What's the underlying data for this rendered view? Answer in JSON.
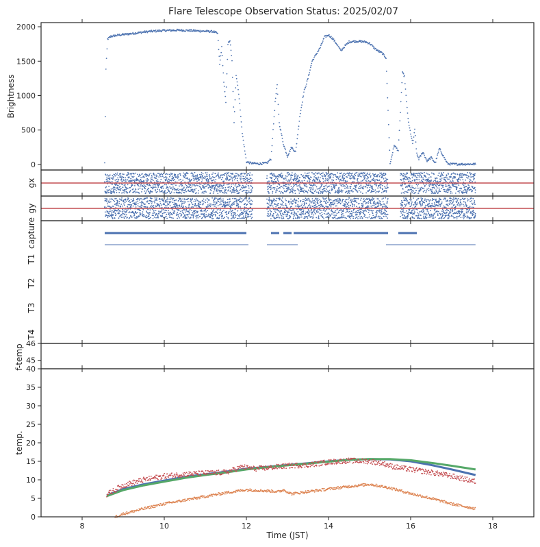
{
  "chart_data": {
    "type": "scatter",
    "title": "Flare Telescope Observation Status: 2025/02/07",
    "xlabel": "Time (JST)",
    "xlim": [
      7,
      19
    ],
    "xticks": [
      8,
      10,
      12,
      14,
      16,
      18
    ],
    "colors": {
      "blue": "#4c72b0",
      "orange": "#dd8452",
      "green": "#55a868",
      "red": "#c44e52",
      "axis": "#262626"
    },
    "panels": [
      {
        "id": "brightness",
        "ylabel": "Brightness",
        "ylim": [
          -80,
          2060
        ],
        "yticks": [
          0,
          500,
          1000,
          1500,
          2000
        ],
        "series": [
          {
            "color": "#4c72b0",
            "style": "scatter",
            "points": [
              [
                8.55,
                20
              ],
              [
                8.58,
                1380
              ],
              [
                8.62,
                1820
              ],
              [
                8.7,
                1860
              ],
              [
                8.9,
                1880
              ],
              [
                9.2,
                1900
              ],
              [
                9.6,
                1930
              ],
              [
                10.0,
                1945
              ],
              [
                10.4,
                1950
              ],
              [
                10.8,
                1940
              ],
              [
                11.0,
                1935
              ],
              [
                11.2,
                1930
              ],
              [
                11.3,
                1900
              ],
              [
                11.35,
                1450
              ],
              [
                11.4,
                1700
              ],
              [
                11.45,
                1200
              ],
              [
                11.5,
                900
              ],
              [
                11.55,
                1750
              ],
              [
                11.6,
                1800
              ],
              [
                11.65,
                1500
              ],
              [
                11.7,
                600
              ],
              [
                11.75,
                1300
              ],
              [
                11.8,
                1100
              ],
              [
                11.85,
                800
              ],
              [
                11.9,
                450
              ],
              [
                11.95,
                250
              ],
              [
                12.0,
                40
              ],
              [
                12.1,
                20
              ],
              [
                12.3,
                10
              ],
              [
                12.5,
                20
              ],
              [
                12.6,
                80
              ],
              [
                12.7,
                900
              ],
              [
                12.75,
                1150
              ],
              [
                12.8,
                600
              ],
              [
                12.9,
                300
              ],
              [
                13.0,
                120
              ],
              [
                13.1,
                250
              ],
              [
                13.2,
                180
              ],
              [
                13.3,
                700
              ],
              [
                13.4,
                1050
              ],
              [
                13.5,
                1250
              ],
              [
                13.6,
                1500
              ],
              [
                13.7,
                1600
              ],
              [
                13.8,
                1700
              ],
              [
                13.9,
                1850
              ],
              [
                14.0,
                1880
              ],
              [
                14.1,
                1830
              ],
              [
                14.2,
                1750
              ],
              [
                14.3,
                1650
              ],
              [
                14.4,
                1720
              ],
              [
                14.5,
                1780
              ],
              [
                14.7,
                1790
              ],
              [
                14.9,
                1780
              ],
              [
                15.0,
                1760
              ],
              [
                15.1,
                1700
              ],
              [
                15.2,
                1650
              ],
              [
                15.3,
                1620
              ],
              [
                15.4,
                1550
              ],
              [
                15.5,
                10
              ],
              [
                15.6,
                280
              ],
              [
                15.7,
                200
              ],
              [
                15.8,
                1330
              ],
              [
                15.85,
                1280
              ],
              [
                15.9,
                900
              ],
              [
                15.95,
                600
              ],
              [
                16.0,
                450
              ],
              [
                16.05,
                300
              ],
              [
                16.1,
                500
              ],
              [
                16.15,
                150
              ],
              [
                16.2,
                80
              ],
              [
                16.3,
                180
              ],
              [
                16.4,
                50
              ],
              [
                16.5,
                100
              ],
              [
                16.6,
                20
              ],
              [
                16.7,
                230
              ],
              [
                16.8,
                120
              ],
              [
                16.9,
                10
              ],
              [
                17.0,
                5
              ],
              [
                17.3,
                5
              ],
              [
                17.58,
                5
              ]
            ]
          }
        ]
      },
      {
        "id": "gx",
        "ylabel": "gx",
        "ylim": [
          -1,
          1
        ],
        "yticks": [],
        "refline": 0,
        "scatter_ranges": [
          [
            8.55,
            12.15
          ],
          [
            12.5,
            15.45
          ],
          [
            15.75,
            17.58
          ]
        ],
        "spread": 0.8
      },
      {
        "id": "gy",
        "ylabel": "gy",
        "ylim": [
          -1,
          1
        ],
        "yticks": [],
        "refline": 0,
        "scatter_ranges": [
          [
            8.55,
            12.15
          ],
          [
            12.5,
            15.45
          ],
          [
            15.75,
            17.58
          ]
        ],
        "spread": 0.85
      },
      {
        "id": "status",
        "ylabel": "",
        "categories": [
          "capture",
          "T1",
          "T2",
          "T3",
          "T4"
        ],
        "capture_segments": [
          [
            8.55,
            12.0
          ],
          [
            12.6,
            12.8
          ],
          [
            12.9,
            13.1
          ],
          [
            13.15,
            15.45
          ],
          [
            15.7,
            16.15
          ]
        ],
        "status_segments": [
          [
            8.55,
            12.05
          ],
          [
            12.5,
            13.25
          ],
          [
            15.4,
            17.58
          ]
        ]
      },
      {
        "id": "ftemp",
        "ylabel": "f-temp",
        "ylim": [
          44.5,
          46
        ],
        "yticks": [
          45,
          46
        ]
      },
      {
        "id": "temp",
        "ylabel": "temp.",
        "ylim": [
          0,
          40
        ],
        "yticks": [
          0,
          5,
          10,
          15,
          20,
          25,
          30,
          35,
          40
        ],
        "series": [
          {
            "color": "#4c72b0",
            "style": "line",
            "points": [
              [
                8.6,
                5.8
              ],
              [
                9,
                7.5
              ],
              [
                9.5,
                8.8
              ],
              [
                10,
                9.8
              ],
              [
                10.5,
                10.8
              ],
              [
                11,
                11.5
              ],
              [
                11.5,
                12.2
              ],
              [
                12,
                13.0
              ],
              [
                12.5,
                13.5
              ],
              [
                13,
                14.0
              ],
              [
                13.5,
                14.5
              ],
              [
                14,
                15.0
              ],
              [
                14.5,
                15.4
              ],
              [
                15,
                15.6
              ],
              [
                15.5,
                15.5
              ],
              [
                16,
                15.0
              ],
              [
                16.5,
                14.0
              ],
              [
                17,
                12.8
              ],
              [
                17.58,
                11.3
              ]
            ]
          },
          {
            "color": "#55a868",
            "style": "line",
            "points": [
              [
                8.6,
                5.6
              ],
              [
                9,
                7.2
              ],
              [
                9.5,
                8.5
              ],
              [
                10,
                9.5
              ],
              [
                10.5,
                10.5
              ],
              [
                11,
                11.3
              ],
              [
                11.5,
                12.0
              ],
              [
                12,
                12.8
              ],
              [
                12.5,
                13.4
              ],
              [
                13,
                13.9
              ],
              [
                13.5,
                14.4
              ],
              [
                14,
                14.9
              ],
              [
                14.5,
                15.4
              ],
              [
                15,
                15.6
              ],
              [
                15.5,
                15.6
              ],
              [
                16,
                15.3
              ],
              [
                16.5,
                14.6
              ],
              [
                17,
                13.8
              ],
              [
                17.58,
                12.8
              ]
            ]
          },
          {
            "color": "#c44e52",
            "style": "scatter",
            "jitter": 0.7,
            "points": [
              [
                8.6,
                6.0
              ],
              [
                9,
                8.5
              ],
              [
                9.5,
                10.0
              ],
              [
                10,
                11.0
              ],
              [
                10.5,
                11.5
              ],
              [
                11,
                11.8
              ],
              [
                11.5,
                12.0
              ],
              [
                11.9,
                13.5
              ],
              [
                12.2,
                13.0
              ],
              [
                12.5,
                13.2
              ],
              [
                13,
                13.8
              ],
              [
                13.5,
                14.0
              ],
              [
                14,
                14.8
              ],
              [
                14.5,
                15.2
              ],
              [
                15,
                15.0
              ],
              [
                15.3,
                14.5
              ],
              [
                15.6,
                13.5
              ],
              [
                16,
                12.8
              ],
              [
                16.5,
                12.0
              ],
              [
                17,
                11.0
              ],
              [
                17.58,
                9.5
              ]
            ]
          },
          {
            "color": "#dd8452",
            "style": "scatter",
            "jitter": 0.35,
            "points": [
              [
                8.8,
                0.0
              ],
              [
                9,
                0.8
              ],
              [
                9.5,
                2.2
              ],
              [
                10,
                3.5
              ],
              [
                10.5,
                4.5
              ],
              [
                11,
                5.5
              ],
              [
                11.5,
                6.5
              ],
              [
                12,
                7.3
              ],
              [
                12.5,
                7.0
              ],
              [
                12.8,
                6.8
              ],
              [
                12.9,
                7.3
              ],
              [
                13.1,
                6.2
              ],
              [
                13.5,
                6.8
              ],
              [
                14,
                7.5
              ],
              [
                14.5,
                8.2
              ],
              [
                15,
                8.8
              ],
              [
                15.5,
                7.8
              ],
              [
                16,
                6.3
              ],
              [
                16.5,
                5.0
              ],
              [
                17,
                3.5
              ],
              [
                17.58,
                2.2
              ]
            ]
          }
        ]
      }
    ]
  }
}
